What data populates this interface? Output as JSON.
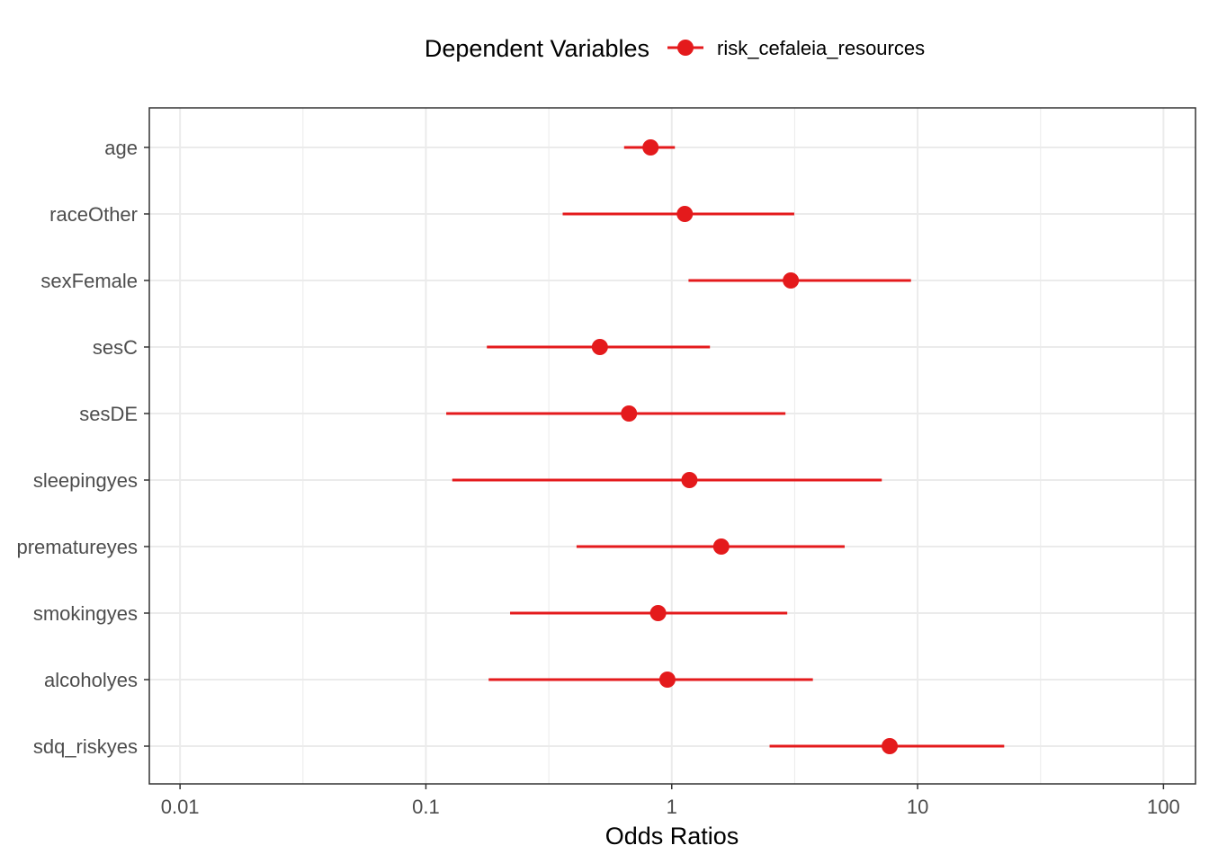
{
  "legend": {
    "title": "Dependent Variables",
    "series_label": "risk_cefaleia_resources"
  },
  "chart_data": {
    "type": "scatter",
    "subtype": "forest-plot",
    "xlabel": "Odds Ratios",
    "ylabel": "",
    "x_scale": "log10",
    "xlim": [
      0.0075,
      135
    ],
    "x_ticks": [
      0.01,
      0.1,
      1,
      10,
      100
    ],
    "x_tick_labels": [
      "0.01",
      "0.1",
      "1",
      "10",
      "100"
    ],
    "grid": true,
    "legend_position": "top",
    "color": "#e41a1c",
    "series": [
      {
        "name": "risk_cefaleia_resources",
        "points": [
          {
            "term": "age",
            "estimate": 0.82,
            "conf_low": 0.64,
            "conf_high": 1.03
          },
          {
            "term": "raceOther",
            "estimate": 1.13,
            "conf_low": 0.36,
            "conf_high": 3.15
          },
          {
            "term": "sexFemale",
            "estimate": 3.05,
            "conf_low": 1.17,
            "conf_high": 9.4
          },
          {
            "term": "sesC",
            "estimate": 0.51,
            "conf_low": 0.177,
            "conf_high": 1.43
          },
          {
            "term": "sesDE",
            "estimate": 0.67,
            "conf_low": 0.121,
            "conf_high": 2.9
          },
          {
            "term": "sleepingyes",
            "estimate": 1.18,
            "conf_low": 0.128,
            "conf_high": 7.15
          },
          {
            "term": "prematureyes",
            "estimate": 1.59,
            "conf_low": 0.41,
            "conf_high": 5.05
          },
          {
            "term": "smokingyes",
            "estimate": 0.88,
            "conf_low": 0.22,
            "conf_high": 2.95
          },
          {
            "term": "alcoholyes",
            "estimate": 0.96,
            "conf_low": 0.18,
            "conf_high": 3.75
          },
          {
            "term": "sdq_riskyes",
            "estimate": 7.7,
            "conf_low": 2.5,
            "conf_high": 22.5
          }
        ]
      }
    ]
  }
}
